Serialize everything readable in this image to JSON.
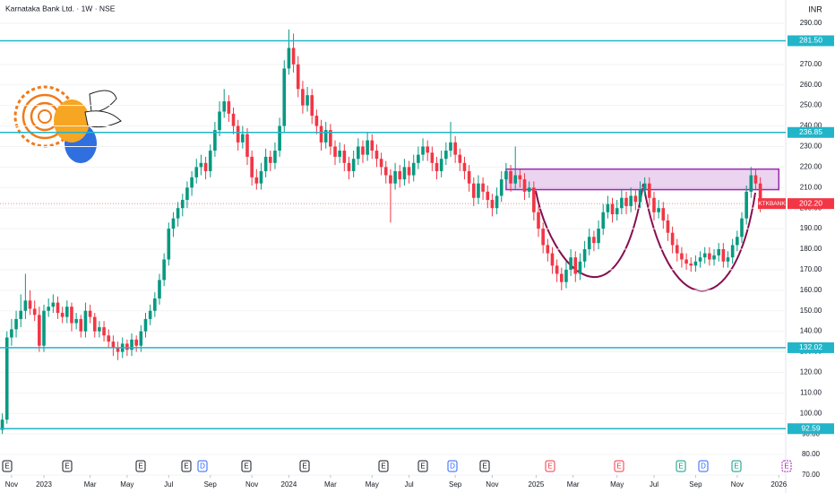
{
  "header": {
    "title": "Karnataka Bank Ltd. · 1W · NSE",
    "currency": "INR"
  },
  "chart_data": {
    "type": "candlestick",
    "up_color": "#089981",
    "down_color": "#f23645",
    "candles": [
      [
        92,
        100,
        90,
        97
      ],
      [
        97,
        140,
        95,
        137
      ],
      [
        137,
        146,
        133,
        141
      ],
      [
        141,
        150,
        137,
        146
      ],
      [
        146,
        158,
        142,
        150
      ],
      [
        150,
        168,
        146,
        155
      ],
      [
        155,
        160,
        148,
        151
      ],
      [
        151,
        155,
        145,
        148
      ],
      [
        148,
        152,
        130,
        133
      ],
      [
        133,
        153,
        130,
        150
      ],
      [
        150,
        156,
        147,
        152
      ],
      [
        152,
        158,
        149,
        154
      ],
      [
        154,
        157,
        146,
        149
      ],
      [
        149,
        152,
        144,
        147
      ],
      [
        147,
        155,
        144,
        152
      ],
      [
        152,
        154,
        140,
        144
      ],
      [
        144,
        149,
        141,
        146
      ],
      [
        146,
        148,
        137,
        140
      ],
      [
        140,
        154,
        137,
        150
      ],
      [
        150,
        153,
        144,
        147
      ],
      [
        147,
        149,
        137,
        140
      ],
      [
        140,
        145,
        137,
        142
      ],
      [
        142,
        145,
        135,
        138
      ],
      [
        138,
        141,
        132,
        135
      ],
      [
        135,
        138,
        128,
        132
      ],
      [
        132,
        135,
        126,
        130
      ],
      [
        130,
        137,
        127,
        134
      ],
      [
        134,
        136,
        128,
        131
      ],
      [
        131,
        139,
        128,
        136
      ],
      [
        136,
        138,
        130,
        133
      ],
      [
        133,
        143,
        130,
        140
      ],
      [
        140,
        149,
        137,
        146
      ],
      [
        146,
        153,
        143,
        150
      ],
      [
        150,
        159,
        147,
        156
      ],
      [
        156,
        168,
        153,
        165
      ],
      [
        165,
        178,
        162,
        175
      ],
      [
        175,
        193,
        172,
        190
      ],
      [
        190,
        198,
        186,
        195
      ],
      [
        195,
        203,
        191,
        200
      ],
      [
        200,
        207,
        196,
        204
      ],
      [
        204,
        213,
        200,
        210
      ],
      [
        210,
        218,
        206,
        215
      ],
      [
        215,
        224,
        212,
        220
      ],
      [
        220,
        226,
        216,
        222
      ],
      [
        222,
        225,
        214,
        218
      ],
      [
        218,
        231,
        215,
        228
      ],
      [
        228,
        242,
        225,
        238
      ],
      [
        238,
        252,
        235,
        247
      ],
      [
        247,
        258,
        244,
        252
      ],
      [
        252,
        255,
        242,
        246
      ],
      [
        246,
        249,
        236,
        240
      ],
      [
        240,
        243,
        228,
        232
      ],
      [
        232,
        240,
        229,
        236
      ],
      [
        236,
        239,
        221,
        225
      ],
      [
        225,
        228,
        211,
        215
      ],
      [
        215,
        219,
        209,
        212
      ],
      [
        212,
        222,
        209,
        218
      ],
      [
        218,
        229,
        215,
        225
      ],
      [
        225,
        228,
        218,
        222
      ],
      [
        222,
        232,
        219,
        228
      ],
      [
        228,
        244,
        225,
        240
      ],
      [
        240,
        272,
        237,
        268
      ],
      [
        268,
        287,
        265,
        278
      ],
      [
        278,
        285,
        266,
        270
      ],
      [
        270,
        274,
        254,
        258
      ],
      [
        258,
        262,
        246,
        250
      ],
      [
        250,
        259,
        247,
        255
      ],
      [
        255,
        258,
        241,
        245
      ],
      [
        245,
        248,
        236,
        240
      ],
      [
        240,
        243,
        228,
        232
      ],
      [
        232,
        242,
        229,
        238
      ],
      [
        238,
        241,
        226,
        230
      ],
      [
        230,
        233,
        221,
        225
      ],
      [
        225,
        232,
        222,
        228
      ],
      [
        228,
        231,
        218,
        222
      ],
      [
        222,
        225,
        214,
        218
      ],
      [
        218,
        228,
        215,
        224
      ],
      [
        224,
        234,
        221,
        230
      ],
      [
        230,
        233,
        222,
        226
      ],
      [
        226,
        237,
        223,
        233
      ],
      [
        233,
        236,
        224,
        228
      ],
      [
        228,
        231,
        220,
        224
      ],
      [
        224,
        227,
        216,
        220
      ],
      [
        220,
        223,
        212,
        216
      ],
      [
        216,
        219,
        193,
        212
      ],
      [
        212,
        222,
        209,
        218
      ],
      [
        218,
        221,
        210,
        214
      ],
      [
        214,
        224,
        211,
        220
      ],
      [
        220,
        223,
        212,
        216
      ],
      [
        216,
        226,
        213,
        222
      ],
      [
        222,
        230,
        219,
        226
      ],
      [
        226,
        234,
        223,
        230
      ],
      [
        230,
        233,
        223,
        227
      ],
      [
        227,
        230,
        218,
        222
      ],
      [
        222,
        225,
        214,
        218
      ],
      [
        218,
        228,
        215,
        224
      ],
      [
        224,
        232,
        221,
        228
      ],
      [
        228,
        242,
        225,
        232
      ],
      [
        232,
        235,
        222,
        226
      ],
      [
        226,
        229,
        218,
        222
      ],
      [
        222,
        225,
        214,
        218
      ],
      [
        218,
        221,
        208,
        212
      ],
      [
        212,
        215,
        201,
        205
      ],
      [
        205,
        216,
        202,
        212
      ],
      [
        212,
        215,
        204,
        208
      ],
      [
        208,
        211,
        200,
        204
      ],
      [
        204,
        207,
        196,
        200
      ],
      [
        200,
        210,
        197,
        206
      ],
      [
        206,
        218,
        203,
        214
      ],
      [
        214,
        222,
        211,
        218
      ],
      [
        218,
        221,
        208,
        212
      ],
      [
        212,
        230,
        209,
        216
      ],
      [
        216,
        219,
        210,
        214
      ],
      [
        214,
        217,
        204,
        208
      ],
      [
        208,
        213,
        205,
        210
      ],
      [
        210,
        213,
        194,
        198
      ],
      [
        198,
        201,
        186,
        190
      ],
      [
        190,
        193,
        178,
        182
      ],
      [
        182,
        185,
        174,
        178
      ],
      [
        178,
        181,
        168,
        172
      ],
      [
        172,
        175,
        164,
        168
      ],
      [
        168,
        171,
        160,
        164
      ],
      [
        164,
        174,
        161,
        170
      ],
      [
        170,
        180,
        167,
        176
      ],
      [
        176,
        179,
        164,
        168
      ],
      [
        168,
        178,
        165,
        174
      ],
      [
        174,
        184,
        171,
        180
      ],
      [
        180,
        190,
        177,
        186
      ],
      [
        186,
        189,
        179,
        183
      ],
      [
        183,
        194,
        180,
        190
      ],
      [
        190,
        202,
        187,
        198
      ],
      [
        198,
        206,
        195,
        202
      ],
      [
        202,
        205,
        193,
        197
      ],
      [
        197,
        204,
        194,
        200
      ],
      [
        200,
        209,
        197,
        205
      ],
      [
        205,
        208,
        197,
        201
      ],
      [
        201,
        210,
        198,
        206
      ],
      [
        206,
        209,
        199,
        203
      ],
      [
        203,
        213,
        200,
        209
      ],
      [
        209,
        215,
        206,
        212
      ],
      [
        212,
        215,
        201,
        205
      ],
      [
        205,
        208,
        194,
        198
      ],
      [
        198,
        204,
        195,
        200
      ],
      [
        200,
        203,
        190,
        194
      ],
      [
        194,
        197,
        184,
        188
      ],
      [
        188,
        191,
        178,
        182
      ],
      [
        182,
        185,
        174,
        178
      ],
      [
        178,
        181,
        171,
        175
      ],
      [
        175,
        178,
        170,
        173
      ],
      [
        173,
        176,
        169,
        172
      ],
      [
        172,
        177,
        169,
        174
      ],
      [
        174,
        179,
        171,
        176
      ],
      [
        176,
        181,
        173,
        178
      ],
      [
        178,
        181,
        172,
        175
      ],
      [
        175,
        180,
        172,
        177
      ],
      [
        177,
        183,
        174,
        180
      ],
      [
        180,
        183,
        171,
        174
      ],
      [
        174,
        179,
        171,
        176
      ],
      [
        176,
        185,
        173,
        182
      ],
      [
        182,
        189,
        179,
        186
      ],
      [
        186,
        198,
        183,
        195
      ],
      [
        195,
        211,
        192,
        208
      ],
      [
        208,
        220,
        205,
        216
      ],
      [
        216,
        219,
        209,
        212
      ],
      [
        212,
        215,
        198,
        202
      ]
    ],
    "xlim": [
      -0.5,
      169.5
    ],
    "xticks": [
      {
        "value": 2,
        "label": "Nov"
      },
      {
        "value": 9,
        "label": "2023"
      },
      {
        "value": 19,
        "label": "Mar"
      },
      {
        "value": 27,
        "label": "May"
      },
      {
        "value": 36,
        "label": "Jul"
      },
      {
        "value": 45,
        "label": "Sep"
      },
      {
        "value": 54,
        "label": "Nov"
      },
      {
        "value": 62,
        "label": "2024"
      },
      {
        "value": 71,
        "label": "Mar"
      },
      {
        "value": 80,
        "label": "May"
      },
      {
        "value": 88,
        "label": "Jul"
      },
      {
        "value": 98,
        "label": "Sep"
      },
      {
        "value": 106,
        "label": "Nov"
      },
      {
        "value": 115.5,
        "label": "2025"
      },
      {
        "value": 123.5,
        "label": "Mar"
      },
      {
        "value": 133,
        "label": "May"
      },
      {
        "value": 141,
        "label": "Jul"
      },
      {
        "value": 150,
        "label": "Sep"
      },
      {
        "value": 159,
        "label": "Nov"
      },
      {
        "value": 168,
        "label": "2026"
      }
    ],
    "ylim": [
      70,
      290
    ],
    "yticks": [
      {
        "value": 70,
        "label": "70.00"
      },
      {
        "value": 80,
        "label": "80.00"
      },
      {
        "value": 90,
        "label": "90.00"
      },
      {
        "value": 100,
        "label": "100.00"
      },
      {
        "value": 110,
        "label": "110.00"
      },
      {
        "value": 120,
        "label": "120.00"
      },
      {
        "value": 130,
        "label": "130.00"
      },
      {
        "value": 140,
        "label": "140.00"
      },
      {
        "value": 150,
        "label": "150.00"
      },
      {
        "value": 160,
        "label": "160.00"
      },
      {
        "value": 170,
        "label": "170.00"
      },
      {
        "value": 180,
        "label": "180.00"
      },
      {
        "value": 190,
        "label": "190.00"
      },
      {
        "value": 200,
        "label": "200.00"
      },
      {
        "value": 210,
        "label": "210.00"
      },
      {
        "value": 220,
        "label": "220.00"
      },
      {
        "value": 230,
        "label": "230.00"
      },
      {
        "value": 240,
        "label": "240.00"
      },
      {
        "value": 250,
        "label": "250.00"
      },
      {
        "value": 260,
        "label": "260.00"
      },
      {
        "value": 270,
        "label": "270.00"
      },
      {
        "value": 280,
        "label": "280.00"
      },
      {
        "value": 290,
        "label": "290.00"
      }
    ],
    "levels": [
      {
        "value": 281.5,
        "label": "281.50"
      },
      {
        "value": 236.85,
        "label": "236.85"
      },
      {
        "value": 132.02,
        "label": "132.02"
      },
      {
        "value": 92.59,
        "label": "92.59"
      }
    ],
    "level_color": "#22b5c9",
    "last_price": {
      "value": 202.2,
      "label": "202.20",
      "symbol": "KTKBANK"
    },
    "zone": {
      "low": 209,
      "high": 219,
      "start": 109,
      "end": 168
    },
    "events": [
      "E",
      "E",
      "E",
      "E",
      "D",
      "E",
      "E",
      "E",
      "E",
      "D",
      "E",
      "E",
      "E",
      "E",
      "D",
      "E",
      "E"
    ]
  }
}
